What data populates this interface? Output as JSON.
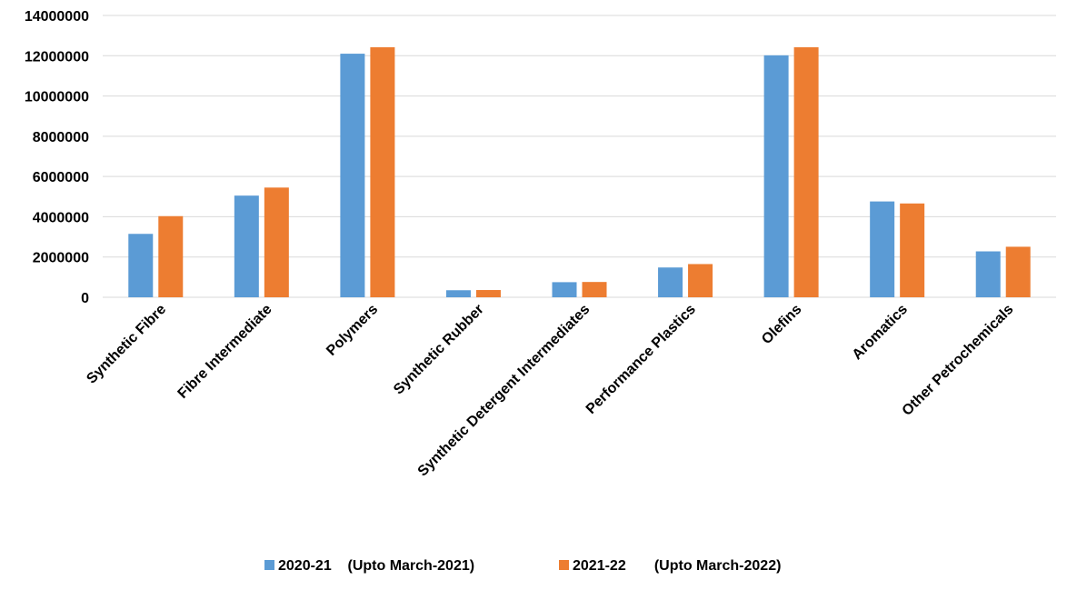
{
  "chart_data": {
    "type": "bar",
    "title": "",
    "xlabel": "",
    "ylabel": "",
    "ylim": [
      0,
      14000000
    ],
    "yticks": [
      0,
      2000000,
      4000000,
      6000000,
      8000000,
      10000000,
      12000000,
      14000000
    ],
    "ytick_labels": [
      "0",
      "2000000",
      "4000000",
      "6000000",
      "8000000",
      "10000000",
      "12000000",
      "14000000"
    ],
    "grid": true,
    "legend_position": "bottom",
    "categories": [
      "Synthetic Fibre",
      "Fibre Intermediate",
      "Polymers",
      "Synthetic Rubber",
      "Synthetic Detergent Intermediates",
      "Performance Plastics",
      "Olefins",
      "Aromatics",
      "Other Petrochemicals"
    ],
    "series": [
      {
        "name": "2020-21    (Upto March-2021)",
        "color": "#5b9bd5",
        "values": [
          3150000,
          5050000,
          12100000,
          350000,
          750000,
          1480000,
          12020000,
          4760000,
          2280000
        ]
      },
      {
        "name": "2021-22       (Upto March-2022)",
        "color": "#ed7d31",
        "values": [
          4030000,
          5450000,
          12420000,
          360000,
          760000,
          1650000,
          12420000,
          4660000,
          2510000
        ]
      }
    ]
  }
}
